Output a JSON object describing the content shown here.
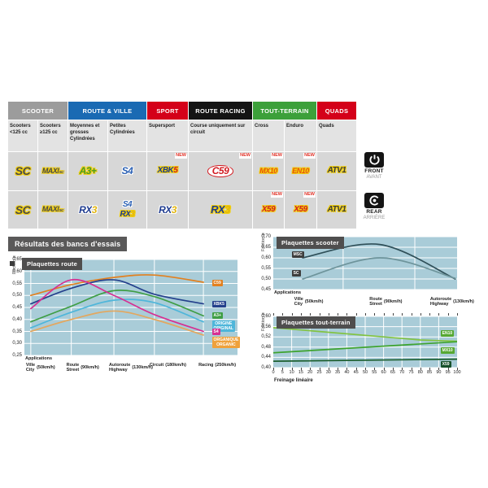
{
  "section_title": "Résultats des bancs d'essais",
  "position_badges": {
    "front_title": "FRONT",
    "front_sub": "AVANT",
    "rear_title": "REAR",
    "rear_sub": "ARRIÈRE"
  },
  "header_table": {
    "new_badge": "NEW",
    "categories": [
      {
        "label": "SCOOTER",
        "color": "#9c9c9c",
        "span": 2
      },
      {
        "label": "ROUTE & VILLE",
        "color": "#1a6ab3",
        "span": 2
      },
      {
        "label": "SPORT",
        "color": "#d40019",
        "span": 1
      },
      {
        "label": "ROUTE RACING",
        "color": "#141414",
        "span": 1
      },
      {
        "label": "TOUT-TERRAIN",
        "color": "#3ca03a",
        "span": 2
      },
      {
        "label": "QUADS",
        "color": "#d40019",
        "span": 1
      }
    ],
    "columns": [
      "Scooters <125 cc",
      "Scooters ≥125 cc",
      "Moyennes et grosses Cylindrées",
      "Petites Cylindrées",
      "Supersport",
      "Course uniquement sur circuit",
      "Cross",
      "Enduro",
      "Quads"
    ],
    "rows": {
      "front": [
        {
          "logos": [
            {
              "parts": [
                {
                  "t": "SC",
                  "c": "#4a4a4e"
                }
              ],
              "outline": "#f2cf0b",
              "size": 14
            }
          ]
        },
        {
          "logos": [
            {
              "parts": [
                {
                  "t": "MAXI",
                  "c": "#4a4a4e"
                },
                {
                  "t": "SC",
                  "c": "#4a4a4e",
                  "small": true
                }
              ],
              "outline": "#f2cf0b",
              "size": 9
            }
          ]
        },
        {
          "logos": [
            {
              "parts": [
                {
                  "t": "A3+",
                  "c": "#4a9b28"
                }
              ],
              "outline": "#f2cf0b",
              "size": 12
            }
          ]
        },
        {
          "logos": [
            {
              "parts": [
                {
                  "t": "S4",
                  "c": "#2d62b5"
                }
              ],
              "outline": "#ffffff",
              "size": 12
            }
          ]
        },
        {
          "new": true,
          "logos": [
            {
              "parts": [
                {
                  "t": "XBK",
                  "c": "#1d3a8f"
                },
                {
                  "t": "5",
                  "c": "#d21c22"
                }
              ],
              "outline": "#f2cf0b",
              "size": 10
            }
          ]
        },
        {
          "new": true,
          "logos": [
            {
              "parts": [
                {
                  "t": "C59",
                  "c": "#d21c22"
                }
              ],
              "outline": "#ffffff",
              "size": 12,
              "oval": true
            }
          ]
        },
        {
          "new": true,
          "logos": [
            {
              "parts": [
                {
                  "t": "MX10",
                  "c": "#e8560c"
                }
              ],
              "outline": "#f2cf0b",
              "size": 9
            }
          ]
        },
        {
          "new": true,
          "logos": [
            {
              "parts": [
                {
                  "t": "EN10",
                  "c": "#e8560c"
                }
              ],
              "outline": "#f2cf0b",
              "size": 9
            }
          ]
        },
        {
          "logos": [
            {
              "parts": [
                {
                  "t": "ATV1",
                  "c": "#3a3a3e"
                }
              ],
              "outline": "#f2cf0b",
              "size": 10
            }
          ]
        }
      ],
      "rear": [
        {
          "logos": [
            {
              "parts": [
                {
                  "t": "SC",
                  "c": "#4a4a4e"
                }
              ],
              "outline": "#f2cf0b",
              "size": 14
            }
          ]
        },
        {
          "logos": [
            {
              "parts": [
                {
                  "t": "MAXI",
                  "c": "#4a4a4e"
                },
                {
                  "t": "SC",
                  "c": "#4a4a4e",
                  "small": true
                }
              ],
              "outline": "#f2cf0b",
              "size": 9
            }
          ]
        },
        {
          "logos": [
            {
              "parts": [
                {
                  "t": "RX",
                  "c": "#1d3a8f"
                },
                {
                  "t": "3",
                  "c": "#e2b50c"
                }
              ],
              "outline": "#ffffff",
              "size": 12
            }
          ]
        },
        {
          "logos": [
            {
              "parts": [
                {
                  "t": "S4",
                  "c": "#2d62b5"
                }
              ],
              "outline": "#ffffff",
              "size": 10
            },
            {
              "parts": [
                {
                  "t": "RX",
                  "c": "#1d3a8f"
                },
                {
                  "t": "3",
                  "c": "#e2b50c"
                }
              ],
              "outline": "#f2cf0b",
              "size": 10
            }
          ]
        },
        {
          "logos": [
            {
              "parts": [
                {
                  "t": "RX",
                  "c": "#1d3a8f"
                },
                {
                  "t": "3",
                  "c": "#e2b50c"
                }
              ],
              "outline": "#ffffff",
              "size": 12
            }
          ]
        },
        {
          "logos": [
            {
              "parts": [
                {
                  "t": "RX",
                  "c": "#1d3a8f"
                },
                {
                  "t": "3",
                  "c": "#e2b50c"
                }
              ],
              "outline": "#f2cf0b",
              "size": 13
            }
          ]
        },
        {
          "new": true,
          "logos": [
            {
              "parts": [
                {
                  "t": "X59",
                  "c": "#d21c22"
                }
              ],
              "outline": "#f2cf0b",
              "size": 10
            }
          ]
        },
        {
          "new": true,
          "logos": [
            {
              "parts": [
                {
                  "t": "X59",
                  "c": "#d21c22"
                }
              ],
              "outline": "#f2cf0b",
              "size": 10
            }
          ]
        },
        {
          "logos": [
            {
              "parts": [
                {
                  "t": "ATV1",
                  "c": "#3a3a3e"
                }
              ],
              "outline": "#f2cf0b",
              "size": 10
            }
          ]
        }
      ]
    }
  },
  "chart_data": [
    {
      "id": "route",
      "type": "line",
      "title": "Plaquettes route",
      "ylabel": "Friction μ",
      "xlabel": "Applications",
      "ylim": [
        0.25,
        0.65
      ],
      "grid": true,
      "legend_position": "right-inside",
      "ytick_labels": [
        "0,65",
        "0,60",
        "0,55",
        "0,50",
        "0,45",
        "0,40",
        "0,35",
        "0,30",
        "0,25"
      ],
      "x_pct": [
        3,
        22,
        42,
        61,
        84
      ],
      "cat_x_pct": [
        3,
        22,
        42,
        61,
        84
      ],
      "vgrid_pct": [
        3,
        22,
        42,
        61,
        84
      ],
      "categories": [
        {
          "fr": "Ville",
          "en": "City",
          "speed": "(50km/h)"
        },
        {
          "fr": "Route",
          "en": "Street",
          "speed": "(90km/h)"
        },
        {
          "fr": "Autoroute",
          "en": "Highway",
          "speed": "(130km/h)"
        },
        {
          "fr": "Circuit",
          "en": "",
          "speed": "(180km/h)"
        },
        {
          "fr": "Racing",
          "en": "",
          "speed": "(250km/h)"
        }
      ],
      "series": [
        {
          "name": "C59",
          "color": "#e2801f",
          "values": [
            0.5,
            0.545,
            0.575,
            0.585,
            0.555
          ],
          "label_at": {
            "x_pct": 88,
            "value": 0.553
          },
          "label_lines": [
            "C59"
          ]
        },
        {
          "name": "XBK5",
          "color": "#24408c",
          "values": [
            0.465,
            0.53,
            0.565,
            0.505,
            0.465
          ],
          "label_at": {
            "x_pct": 88,
            "value": 0.465
          },
          "label_lines": [
            "XBK5"
          ]
        },
        {
          "name": "A3+",
          "color": "#3f9e45",
          "values": [
            0.39,
            0.455,
            0.52,
            0.495,
            0.415
          ],
          "label_at": {
            "x_pct": 88,
            "value": 0.415
          },
          "label_lines": [
            "A3+"
          ]
        },
        {
          "name": "ORIGINE / ORIGINAL",
          "color": "#4fb6da",
          "values": [
            0.365,
            0.43,
            0.48,
            0.47,
            0.39
          ],
          "label_at": {
            "x_pct": 88,
            "value": 0.376
          },
          "label_lines": [
            "ORIGINE",
            "ORIGINAL"
          ]
        },
        {
          "name": "S4",
          "color": "#d63092",
          "values": [
            0.445,
            0.565,
            0.5,
            0.42,
            0.35
          ],
          "label_at": {
            "x_pct": 88,
            "value": 0.348
          },
          "label_lines": [
            "S4"
          ]
        },
        {
          "name": "ORGANIQUE / ORGANIC",
          "color": "#e3a75f",
          "label_bg": "#efa13b",
          "values": [
            0.35,
            0.4,
            0.435,
            0.4,
            0.335
          ],
          "label_at": {
            "x_pct": 88,
            "value": 0.306
          },
          "label_lines": [
            "ORGANIQUE",
            "ORGANIC"
          ]
        }
      ]
    },
    {
      "id": "scooter",
      "type": "line",
      "title": "Plaquettes scooter",
      "ylabel": "Friction μ",
      "xlabel": "Applications",
      "ylim": [
        0.45,
        0.7
      ],
      "grid": true,
      "legend_position": "left-inside",
      "ytick_labels": [
        "0,70",
        "0,65",
        "0,60",
        "0,55",
        "0,50",
        "0,45"
      ],
      "x_pct": [
        16,
        58,
        99
      ],
      "cat_x_pct": [
        14,
        55,
        88
      ],
      "vgrid_pct": [
        38,
        77
      ],
      "categories": [
        {
          "fr": "Ville",
          "en": "City",
          "speed": "(50km/h)"
        },
        {
          "fr": "Route",
          "en": "Street",
          "speed": "(90km/h)"
        },
        {
          "fr": "Autoroute",
          "en": "Highway",
          "speed": "(130km/h)"
        }
      ],
      "series": [
        {
          "name": "MSC",
          "color": "#2f4f58",
          "label_bg": "#3d3d3d",
          "values": [
            0.6,
            0.663,
            0.5
          ],
          "label_at": {
            "x_pct": 10,
            "value": 0.617
          },
          "label_lines": [
            "MSC"
          ]
        },
        {
          "name": "SC",
          "color": "#6e949b",
          "label_bg": "#3d3d3d",
          "values": [
            0.5,
            0.6,
            0.503
          ],
          "label_at": {
            "x_pct": 10,
            "value": 0.527
          },
          "label_lines": [
            "SC"
          ]
        }
      ]
    },
    {
      "id": "offroad",
      "type": "line",
      "title": "Plaquettes tout-terrain",
      "ylabel": "Friction μ",
      "xlabel": "Freinage linéaire",
      "ylim": [
        0.4,
        0.6
      ],
      "xlim": [
        0,
        100
      ],
      "grid": true,
      "legend_position": "right-inside",
      "ytick_labels": [
        "0,60",
        "0,56",
        "0,52",
        "0,48",
        "0,44",
        "0,40"
      ],
      "xticks": [
        "0",
        "5",
        "10",
        "15",
        "20",
        "25",
        "30",
        "35",
        "40",
        "45",
        "50",
        "55",
        "60",
        "65",
        "70",
        "75",
        "80",
        "85",
        "90",
        "95",
        "100"
      ],
      "vgrid_pct": [
        10,
        20,
        30,
        40,
        50,
        60,
        70,
        80,
        90
      ],
      "series": [
        {
          "name": "EN10",
          "color": "#82c341",
          "label_bg": "#56a832",
          "straight": true,
          "points": [
            [
              0,
              0.556
            ],
            [
              80,
              0.508
            ],
            [
              100,
              0.503
            ]
          ],
          "label_at": {
            "x_pct": 91,
            "value": 0.534
          },
          "label_lines": [
            "EN10"
          ]
        },
        {
          "name": "MX10",
          "color": "#3da32e",
          "label_bg": "#56a832",
          "straight": true,
          "points": [
            [
              0,
              0.458
            ],
            [
              100,
              0.501
            ]
          ],
          "label_at": {
            "x_pct": 91,
            "value": 0.468
          },
          "label_lines": [
            "MX10"
          ]
        },
        {
          "name": "X59",
          "color": "#1b5e2e",
          "label_bg": "#17512b",
          "straight": true,
          "points": [
            [
              0,
              0.425
            ],
            [
              100,
              0.433
            ]
          ],
          "label_at": {
            "x_pct": 91,
            "value": 0.413
          },
          "label_lines": [
            "X59"
          ]
        }
      ]
    }
  ]
}
